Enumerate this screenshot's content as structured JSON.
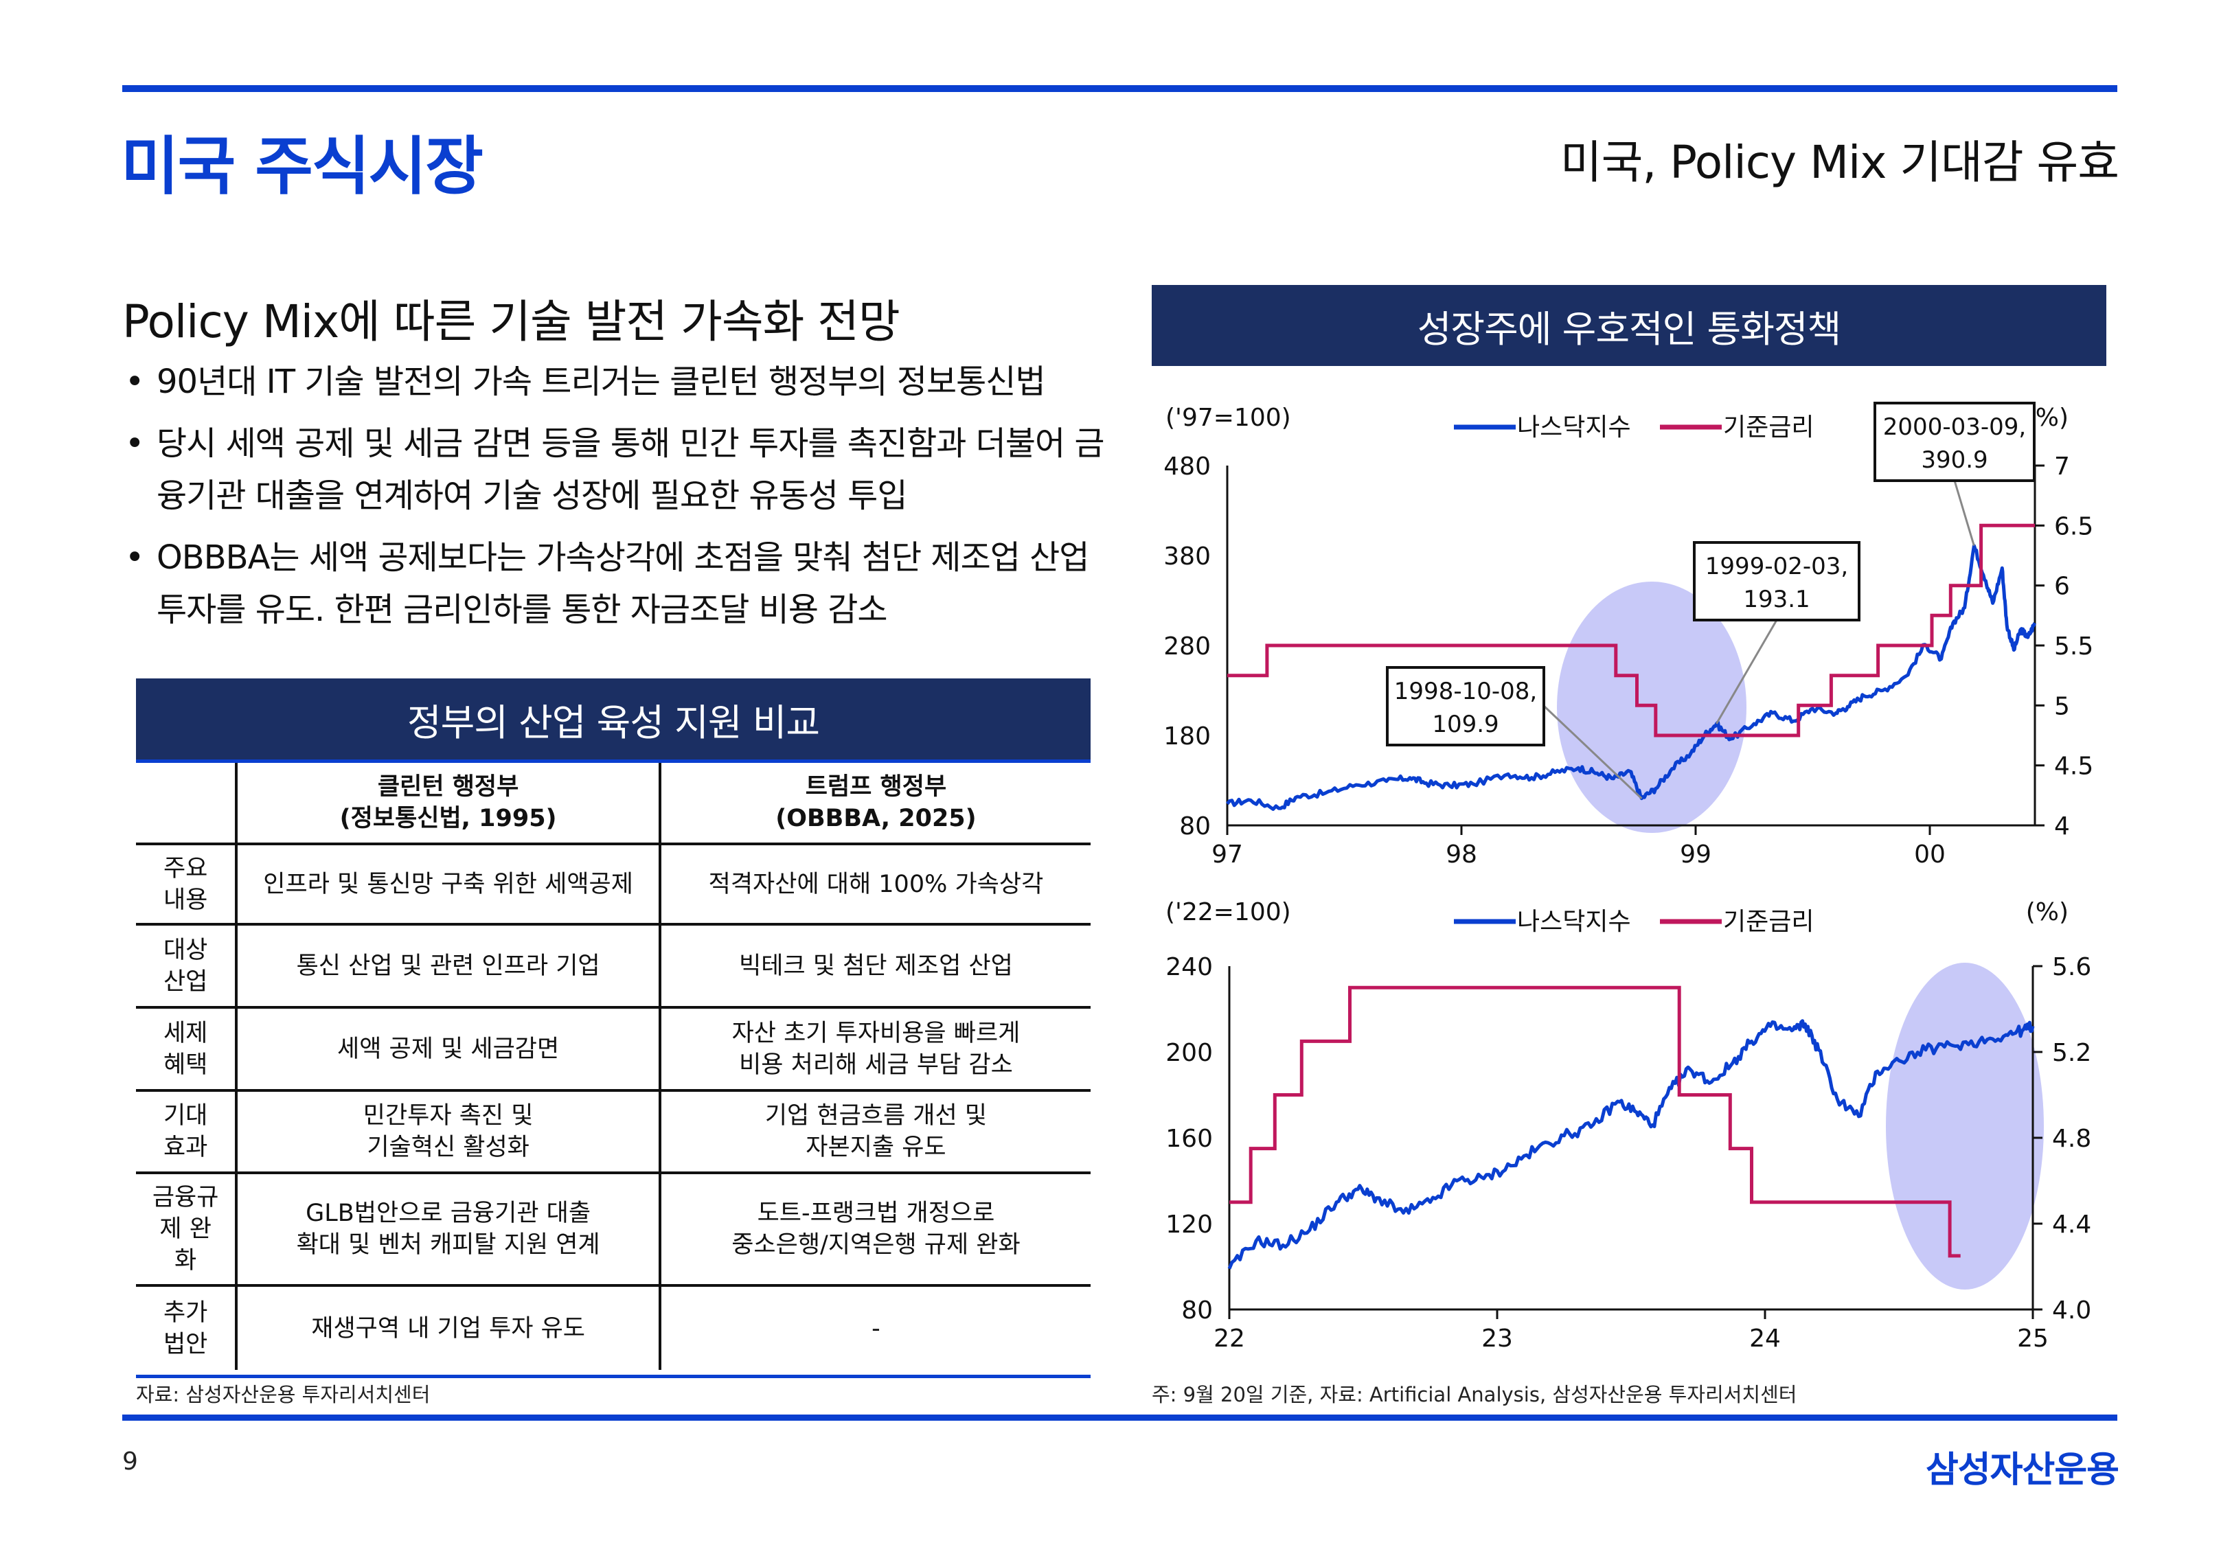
{
  "header": {
    "title": "미국 주식시장",
    "subtitle": "미국, Policy Mix 기대감 유효"
  },
  "left": {
    "heading": "Policy Mix에 따른 기술 발전 가속화 전망",
    "bullets": [
      "90년대 IT 기술 발전의 가속 트리거는 클린턴 행정부의 정보통신법",
      "당시 세액 공제 및 세금 감면 등을 통해 민간 투자를 촉진함과 더불어 금융기관 대출을 연계하여 기술 성장에 필요한 유동성 투입",
      "OBBBA는 세액 공제보다는 가속상각에 초점을 맞춰 첨단 제조업 산업 투자를 유도. 한편 금리인하를 통한 자금조달 비용 감소"
    ],
    "table": {
      "banner": "정부의 산업 육성 지원 비교",
      "header_c1_l1": "클린턴 행정부",
      "header_c1_l2": "(정보통신법, 1995)",
      "header_c2_l1": "트럼프 행정부",
      "header_c2_l2": "(OBBBA, 2025)",
      "rows": [
        {
          "label1": "주요",
          "label2": "내용",
          "label3": "",
          "c1a": "인프라 및 통신망 구축 위한 세액공제",
          "c1b": "",
          "c2a": "적격자산에 대해 100% 가속상각",
          "c2b": ""
        },
        {
          "label1": "대상",
          "label2": "산업",
          "label3": "",
          "c1a": "통신 산업 및 관련 인프라 기업",
          "c1b": "",
          "c2a": "빅테크 및 첨단 제조업 산업",
          "c2b": ""
        },
        {
          "label1": "세제",
          "label2": "혜택",
          "label3": "",
          "c1a": "세액 공제 및 세금감면",
          "c1b": "",
          "c2a": "자산 초기 투자비용을 빠르게",
          "c2b": "비용 처리해 세금 부담 감소"
        },
        {
          "label1": "기대",
          "label2": "효과",
          "label3": "",
          "c1a": "민간투자 촉진 및",
          "c1b": "기술혁신 활성화",
          "c2a": "기업 현금흐름 개선 및",
          "c2b": "자본지출 유도"
        },
        {
          "label1": "금융규",
          "label2": "제 완",
          "label3": "화",
          "c1a": "GLB법안으로 금융기관 대출",
          "c1b": "확대 및 벤처 캐피탈 지원 연계",
          "c2a": "도트-프랭크법 개정으로",
          "c2b": "중소은행/지역은행 규제 완화"
        },
        {
          "label1": "추가",
          "label2": "법안",
          "label3": "",
          "c1a": "재생구역 내 기업 투자 유도",
          "c1b": "",
          "c2a": "-",
          "c2b": ""
        }
      ],
      "source": "자료: 삼성자산운용 투자리서치센터"
    }
  },
  "right": {
    "banner": "성장주에 우호적인 통화정책",
    "source": "주: 9월 20일 기준, 자료: Artificial Analysis, 삼성자산운용 투자리서치센터"
  },
  "colors": {
    "nasdaq": "#0a3fd0",
    "rate": "#c0185d",
    "ellipse": "#9a9cf2"
  },
  "chart_data": [
    {
      "type": "line",
      "left_unit": "('97=100)",
      "right_unit": "(%)",
      "legend": [
        "나스닥지수",
        "기준금리"
      ],
      "x_ticks": [
        "97",
        "98",
        "99",
        "00"
      ],
      "x_range": [
        1997.0,
        2000.45
      ],
      "left_ticks": [
        "480",
        "380",
        "280",
        "180",
        "80"
      ],
      "left_range": [
        80,
        480
      ],
      "right_ticks": [
        "7",
        "6.5",
        "6",
        "5.5",
        "5",
        "4.5",
        "4"
      ],
      "right_range": [
        4,
        7
      ],
      "annotations": [
        {
          "l1": "1998-10-08,",
          "l2": "109.9",
          "x": 1998.77,
          "y": 109.9
        },
        {
          "l1": "1999-02-03,",
          "l2": "193.1",
          "x": 1999.09,
          "y": 193.1
        },
        {
          "l1": "2000-03-09,",
          "l2": "390.9",
          "x": 2000.19,
          "y": 390.9
        }
      ],
      "nasdaq": {
        "x": [
          1997.0,
          1997.1,
          1997.22,
          1997.3,
          1997.42,
          1997.55,
          1997.68,
          1997.78,
          1997.85,
          1997.95,
          1998.05,
          1998.2,
          1998.3,
          1998.4,
          1998.5,
          1998.58,
          1998.65,
          1998.72,
          1998.77,
          1998.83,
          1998.9,
          1998.98,
          1999.04,
          1999.09,
          1999.15,
          1999.25,
          1999.33,
          1999.42,
          1999.5,
          1999.6,
          1999.65,
          1999.72,
          1999.8,
          1999.9,
          1999.98,
          2000.05,
          2000.1,
          2000.15,
          2000.19,
          2000.24,
          2000.27,
          2000.31,
          2000.33,
          2000.36,
          2000.39,
          2000.42,
          2000.45
        ],
        "y": [
          104,
          108,
          99,
          112,
          116,
          125,
          129,
          133,
          127,
          124,
          126,
          137,
          133,
          139,
          144,
          138,
          132,
          140,
          110,
          121,
          143,
          160,
          181,
          193,
          176,
          193,
          205,
          196,
          210,
          205,
          212,
          224,
          230,
          246,
          281,
          265,
          305,
          322,
          390.9,
          352,
          327,
          366,
          303,
          275,
          298,
          289,
          305
        ]
      },
      "rate": {
        "x": [
          1997.0,
          1997.17,
          1997.17,
          1998.66,
          1998.66,
          1998.75,
          1998.75,
          1998.83,
          1998.83,
          1999.44,
          1999.44,
          1999.58,
          1999.58,
          1999.78,
          1999.78,
          2000.01,
          2000.01,
          2000.09,
          2000.09,
          2000.22,
          2000.22,
          2000.37,
          2000.37,
          2000.45
        ],
        "y": [
          5.25,
          5.25,
          5.5,
          5.5,
          5.25,
          5.25,
          5.0,
          5.0,
          4.75,
          4.75,
          5.0,
          5.0,
          5.25,
          5.25,
          5.5,
          5.5,
          5.75,
          5.75,
          6.0,
          6.0,
          6.5,
          6.5,
          6.5,
          6.5
        ]
      }
    },
    {
      "type": "line",
      "left_unit": "('22=100)",
      "right_unit": "(%)",
      "legend": [
        "나스닥지수",
        "기준금리"
      ],
      "x_ticks": [
        "22",
        "23",
        "24",
        "25"
      ],
      "x_range": [
        2022.0,
        2025.0
      ],
      "left_ticks": [
        "240",
        "200",
        "160",
        "120",
        "80"
      ],
      "left_range": [
        80,
        240
      ],
      "right_ticks": [
        "5.6",
        "5.2",
        "4.8",
        "4.4",
        "4.0"
      ],
      "right_range": [
        4.0,
        5.6
      ],
      "nasdaq": {
        "x": [
          2022.0,
          2022.1,
          2022.2,
          2022.3,
          2022.4,
          2022.48,
          2022.55,
          2022.65,
          2022.75,
          2022.85,
          2022.95,
          2023.05,
          2023.15,
          2023.25,
          2023.35,
          2023.45,
          2023.52,
          2023.58,
          2023.65,
          2023.72,
          2023.8,
          2023.88,
          2023.95,
          2024.02,
          2024.1,
          2024.15,
          2024.2,
          2024.27,
          2024.35,
          2024.42,
          2024.5,
          2024.6,
          2024.7,
          2024.8,
          2024.9,
          2024.96,
          2025.0
        ],
        "y": [
          99,
          112,
          110,
          117,
          130,
          136,
          132,
          125,
          130,
          140,
          141,
          147,
          155,
          161,
          165,
          177,
          172,
          166,
          183,
          192,
          186,
          195,
          205,
          212,
          210,
          213,
          201,
          178,
          170,
          191,
          196,
          201,
          203,
          205,
          208,
          210,
          212
        ]
      },
      "rate": {
        "x": [
          2022.0,
          2022.08,
          2022.08,
          2022.17,
          2022.17,
          2022.27,
          2022.27,
          2022.45,
          2022.45,
          2022.6,
          2022.6,
          2023.68,
          2023.68,
          2023.87,
          2023.87,
          2023.95,
          2023.95,
          2024.69,
          2024.69,
          2024.73
        ],
        "y": [
          4.5,
          4.5,
          4.75,
          4.75,
          5.0,
          5.0,
          5.25,
          5.25,
          5.5,
          5.5,
          5.5,
          5.5,
          5.0,
          5.0,
          4.75,
          4.75,
          4.5,
          4.5,
          4.25,
          4.25
        ]
      }
    }
  ]
}
